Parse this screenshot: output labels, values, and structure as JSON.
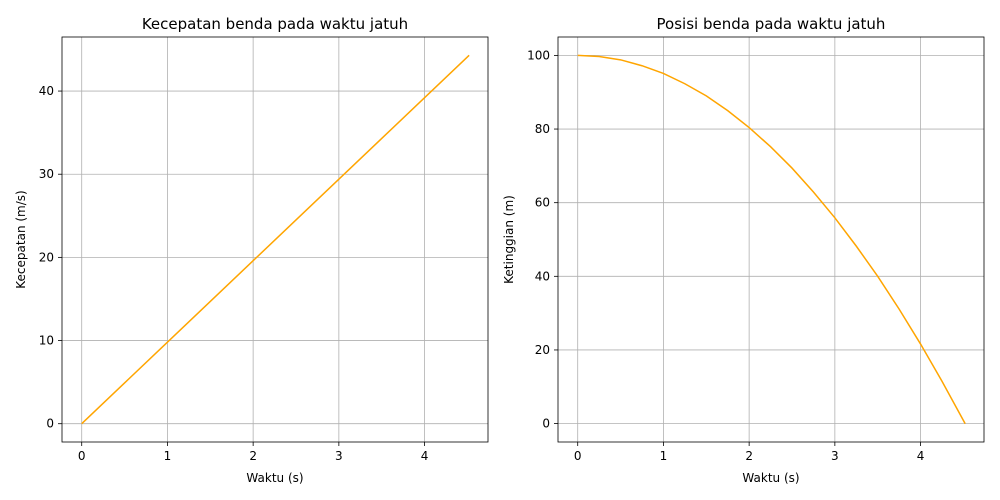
{
  "chart_data": [
    {
      "type": "line",
      "title": "Kecepatan benda pada waktu jatuh",
      "xlabel": "Waktu (s)",
      "ylabel": "Kecepatan (m/s)",
      "xlim": [
        -0.23,
        4.74
      ],
      "ylim": [
        -2.2,
        46.5
      ],
      "xticks": [
        0,
        1,
        2,
        3,
        4
      ],
      "yticks": [
        0,
        10,
        20,
        30,
        40
      ],
      "grid": true,
      "color": "#ffa500",
      "x": [
        0,
        0.5,
        1,
        1.5,
        2,
        2.5,
        3,
        3.5,
        4,
        4.52
      ],
      "y": [
        0,
        4.9,
        9.8,
        14.7,
        19.6,
        24.5,
        29.4,
        34.3,
        39.2,
        44.3
      ]
    },
    {
      "type": "line",
      "title": "Posisi benda pada waktu jatuh",
      "xlabel": "Waktu (s)",
      "ylabel": "Ketinggian (m)",
      "xlim": [
        -0.23,
        4.74
      ],
      "ylim": [
        -5,
        105
      ],
      "xticks": [
        0,
        1,
        2,
        3,
        4
      ],
      "yticks": [
        0,
        20,
        40,
        60,
        80,
        100
      ],
      "grid": true,
      "color": "#ffa500",
      "x": [
        0,
        0.25,
        0.5,
        0.75,
        1,
        1.25,
        1.5,
        1.75,
        2,
        2.25,
        2.5,
        2.75,
        3,
        3.25,
        3.5,
        3.75,
        4,
        4.25,
        4.52
      ],
      "y": [
        100,
        99.7,
        98.8,
        97.2,
        95.1,
        92.3,
        89.0,
        85.0,
        80.4,
        75.2,
        69.4,
        62.9,
        55.9,
        48.2,
        40.0,
        31.1,
        21.6,
        11.5,
        0
      ]
    }
  ]
}
